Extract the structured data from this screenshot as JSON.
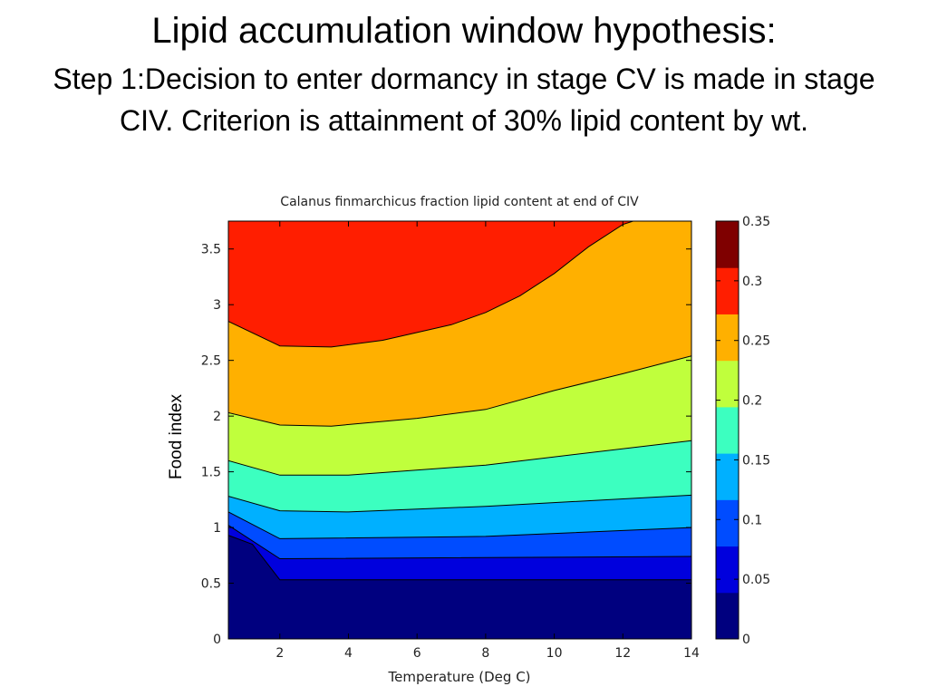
{
  "slide": {
    "title": "Lipid accumulation window hypothesis:",
    "subtitle": "Step 1:Decision to enter dormancy in stage CV is made in stage CIV.  Criterion is attainment of 30% lipid content by wt."
  },
  "chart_data": {
    "type": "filled-contour",
    "title": "Calanus finmarchicus fraction lipid content at end of CIV",
    "xlabel": "Temperature (Deg C)",
    "ylabel": "Food index",
    "xlim": [
      0.5,
      14
    ],
    "ylim": [
      0,
      3.75
    ],
    "xticks": [
      2,
      4,
      6,
      8,
      10,
      12,
      14
    ],
    "yticks": [
      0,
      0.5,
      1,
      1.5,
      2,
      2.5,
      3,
      3.5
    ],
    "grid": false,
    "colorbar": {
      "range": [
        0,
        0.35
      ],
      "ticks": [
        0,
        0.05,
        0.1,
        0.15,
        0.2,
        0.25,
        0.3,
        0.35
      ],
      "colors": [
        "#00007f",
        "#0000dd",
        "#004cff",
        "#00b0ff",
        "#3cffc0",
        "#c0ff3c",
        "#ffb000",
        "#ff1e00",
        "#7f0000"
      ]
    },
    "bands": [
      {
        "color": "#00007f",
        "lower": [
          [
            0.5,
            0
          ],
          [
            14,
            0
          ]
        ]
      },
      {
        "color": "#0000dd",
        "lower": [
          [
            0.5,
            0.93
          ],
          [
            1.2,
            0.85
          ],
          [
            2,
            0.53
          ],
          [
            14,
            0.53
          ]
        ]
      },
      {
        "color": "#004cff",
        "lower": [
          [
            0.5,
            1.02
          ],
          [
            2,
            0.72
          ],
          [
            14,
            0.74
          ]
        ]
      },
      {
        "color": "#00b0ff",
        "lower": [
          [
            0.5,
            1.14
          ],
          [
            2,
            0.9
          ],
          [
            8,
            0.92
          ],
          [
            14,
            1.0
          ]
        ]
      },
      {
        "color": "#3cffc0",
        "lower": [
          [
            0.5,
            1.28
          ],
          [
            2,
            1.15
          ],
          [
            4,
            1.14
          ],
          [
            8,
            1.19
          ],
          [
            14,
            1.29
          ]
        ]
      },
      {
        "color": "#c0ff3c",
        "lower": [
          [
            0.5,
            1.6
          ],
          [
            2,
            1.47
          ],
          [
            4,
            1.47
          ],
          [
            8,
            1.56
          ],
          [
            14,
            1.78
          ]
        ]
      },
      {
        "color": "#ffb000",
        "lower": [
          [
            0.5,
            2.03
          ],
          [
            2,
            1.92
          ],
          [
            3.5,
            1.91
          ],
          [
            6,
            1.98
          ],
          [
            8,
            2.06
          ],
          [
            10,
            2.23
          ],
          [
            12,
            2.38
          ],
          [
            14,
            2.54
          ]
        ]
      },
      {
        "color": "#ff1e00",
        "lower": [
          [
            0.5,
            2.85
          ],
          [
            2,
            2.63
          ],
          [
            3.5,
            2.62
          ],
          [
            5,
            2.68
          ],
          [
            7,
            2.82
          ],
          [
            8,
            2.93
          ],
          [
            9,
            3.08
          ],
          [
            10,
            3.28
          ],
          [
            11,
            3.52
          ],
          [
            12,
            3.72
          ],
          [
            12.4,
            3.76
          ]
        ]
      }
    ]
  }
}
